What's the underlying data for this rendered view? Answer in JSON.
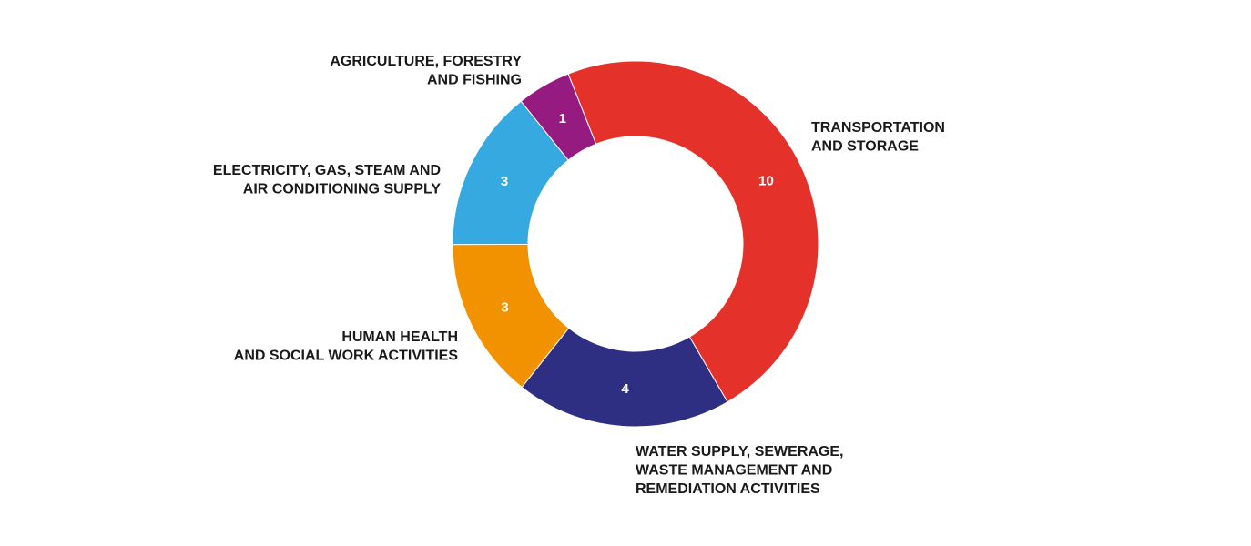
{
  "chart_data": {
    "type": "pie",
    "title": "",
    "donut": true,
    "slices": [
      {
        "label": [
          "TRANSPORTATION",
          "AND STORAGE"
        ],
        "value": 10,
        "value_label": "10",
        "color": "#e4322b"
      },
      {
        "label": [
          "WATER SUPPLY, SEWERAGE,",
          "WASTE MANAGEMENT AND",
          "REMEDIATION ACTIVITIES"
        ],
        "value": 4,
        "value_label": "4",
        "color": "#2e2f82"
      },
      {
        "label": [
          "HUMAN HEALTH",
          "AND SOCIAL WORK ACTIVITIES"
        ],
        "value": 3,
        "value_label": "3",
        "color": "#f39200"
      },
      {
        "label": [
          "ELECTRICITY, GAS, STEAM AND",
          "AIR CONDITIONING SUPPLY"
        ],
        "value": 3,
        "value_label": "3",
        "color": "#36a9e1"
      },
      {
        "label": [
          "AGRICULTURE, FORESTRY",
          "AND FISHING"
        ],
        "value": 1,
        "value_label": "1",
        "color": "#951b81"
      }
    ]
  }
}
